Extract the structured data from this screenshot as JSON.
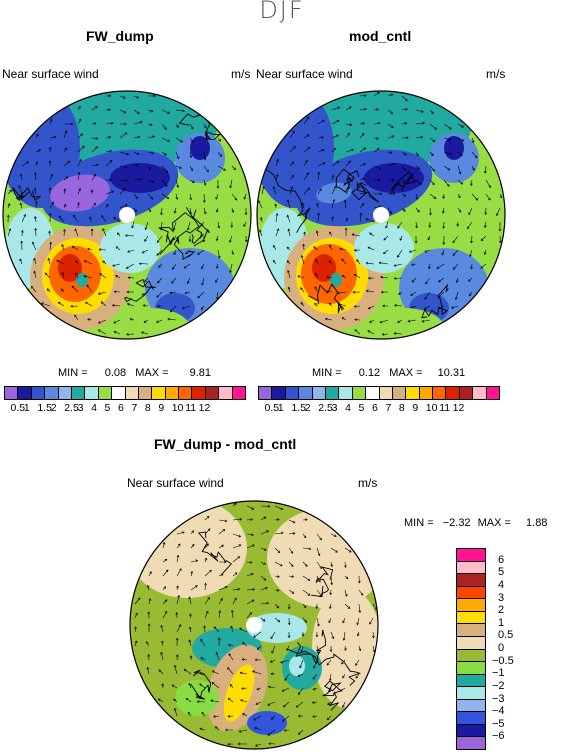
{
  "season": "DJF",
  "panels": [
    {
      "title": "FW_dump",
      "variable": "Near surface wind",
      "units": "m/s",
      "min_label": "MIN =",
      "min": "0.08",
      "max_label": "MAX =",
      "max": "9.81"
    },
    {
      "title": "mod_cntl",
      "variable": "Near surface wind",
      "units": "m/s",
      "min_label": "MIN =",
      "min": "0.12",
      "max_label": "MAX =",
      "max": "10.31"
    }
  ],
  "diff_panel": {
    "title": "FW_dump - mod_cntl",
    "variable": "Near surface wind",
    "units": "m/s",
    "min_label": "MIN =",
    "min": "−2.32",
    "max_label": "MAX =",
    "max": "1.88"
  },
  "abs_colorbar": {
    "colors": [
      "#9966dd",
      "#1a1aa0",
      "#3355cc",
      "#5a8ae0",
      "#8fb4ee",
      "#22aaa0",
      "#a8e8e8",
      "#99dd44",
      "#ffffff",
      "#f0dcb4",
      "#d8b080",
      "#ffdd00",
      "#ffaa00",
      "#ff6600",
      "#dd2200",
      "#aa2222",
      "#ffbbcc",
      "#ff1493"
    ],
    "ticks": [
      "0.5",
      "1",
      "1.5",
      "2",
      "2.5",
      "3",
      "4",
      "5",
      "6",
      "7",
      "8",
      "9",
      "10",
      "11",
      "12"
    ]
  },
  "diff_colorbar": {
    "colors": [
      "#ff1493",
      "#ffbbcc",
      "#aa2222",
      "#ff4400",
      "#ffaa00",
      "#ffdd00",
      "#d8b080",
      "#f0dcb4",
      "#99bb33",
      "#88dd44",
      "#22aaa0",
      "#a8e8e8",
      "#8fb4ee",
      "#3355dd",
      "#1a1aa0",
      "#9966dd"
    ],
    "ticks": [
      "6",
      "5",
      "4",
      "3",
      "2",
      "1",
      "0.5",
      "0",
      "−0.5",
      "−1",
      "−2",
      "−3",
      "−4",
      "−5",
      "−6"
    ]
  },
  "map_colors": {
    "ocean": "#99dd44",
    "land": "#f0dcb4",
    "outline": "#000000"
  }
}
